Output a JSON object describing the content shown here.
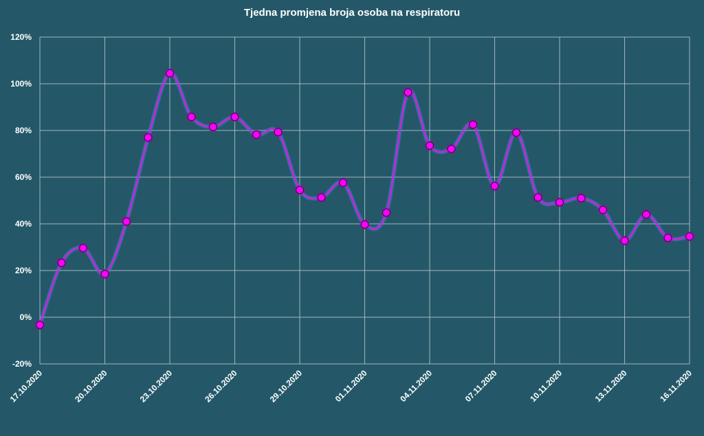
{
  "chart_data": {
    "type": "line",
    "title": "Tjedna promjena broja osoba na respiratoru",
    "xlabel": "",
    "ylabel": "",
    "ylim": [
      -20,
      120
    ],
    "yticks": [
      "-20%",
      "0%",
      "20%",
      "40%",
      "60%",
      "80%",
      "100%",
      "120%"
    ],
    "xtick_labels": [
      "17.10.2020",
      "20.10.2020",
      "23.10.2020",
      "26.10.2020",
      "29.10.2020",
      "01.11.2020",
      "04.11.2020",
      "07.11.2020",
      "10.11.2020",
      "13.11.2020",
      "16.11.2020"
    ],
    "grid": true,
    "line_color": "#cc22dd",
    "marker_color": "#ff00ff",
    "background_color": "#245868",
    "x": [
      "17.10.2020",
      "18.10.2020",
      "19.10.2020",
      "20.10.2020",
      "21.10.2020",
      "22.10.2020",
      "23.10.2020",
      "24.10.2020",
      "25.10.2020",
      "26.10.2020",
      "27.10.2020",
      "28.10.2020",
      "29.10.2020",
      "30.10.2020",
      "31.10.2020",
      "01.11.2020",
      "02.11.2020",
      "03.11.2020",
      "04.11.2020",
      "05.11.2020",
      "06.11.2020",
      "07.11.2020",
      "08.11.2020",
      "09.11.2020",
      "10.11.2020",
      "11.11.2020",
      "12.11.2020",
      "13.11.2020",
      "14.11.2020",
      "15.11.2020",
      "16.11.2020"
    ],
    "values": [
      -3.3,
      23.3,
      29.6,
      18.5,
      41.0,
      77.0,
      104.5,
      85.8,
      81.5,
      85.8,
      78.2,
      79.3,
      54.5,
      51.3,
      57.6,
      39.7,
      44.8,
      96.3,
      73.5,
      72.1,
      82.5,
      56.2,
      79.1,
      51.3,
      49.2,
      51.0,
      46.0,
      32.8,
      44.0,
      34.0,
      34.6
    ]
  }
}
